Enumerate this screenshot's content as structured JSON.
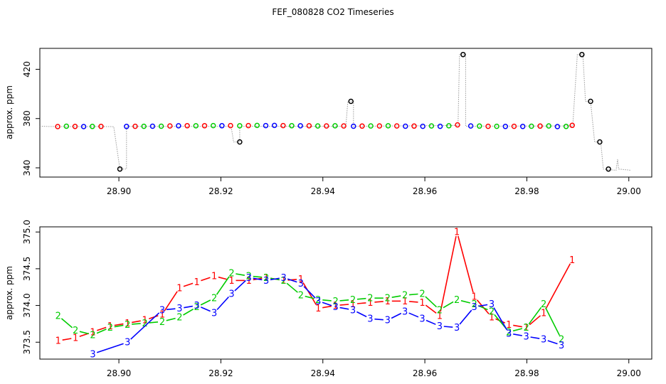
{
  "title": "FEF_080828  CO2 Timeseries",
  "chart_data": [
    {
      "type": "scatter",
      "ylabel": "approx. ppm",
      "xlim": [
        28.8845,
        29.0045
      ],
      "ylim": [
        332.5,
        437
      ],
      "x_ticks": [
        "28.90",
        "28.92",
        "28.94",
        "28.96",
        "28.98",
        "29.00"
      ],
      "y_ticks": [
        "340",
        "380",
        "420"
      ],
      "grid": false,
      "colors": {
        "trace": "#9a9a9a",
        "red": "#ff0000",
        "green": "#00cc00",
        "blue": "#0000ff",
        "black": "#000000"
      },
      "trace": [
        [
          28.8845,
          373.8
        ],
        [
          28.886,
          373.6
        ],
        [
          28.888,
          373.5
        ],
        [
          28.8985,
          373.5
        ],
        [
          28.899,
          373.3
        ],
        [
          28.9002,
          339
        ],
        [
          28.9015,
          339
        ],
        [
          28.9015,
          373.6
        ],
        [
          28.922,
          373.6
        ],
        [
          28.9225,
          361
        ],
        [
          28.9237,
          361
        ],
        [
          28.9237,
          373.7
        ],
        [
          28.9445,
          373.7
        ],
        [
          28.9449,
          394
        ],
        [
          28.946,
          394
        ],
        [
          28.946,
          373.7
        ],
        [
          28.9665,
          374.4
        ],
        [
          28.9668,
          432
        ],
        [
          28.968,
          432
        ],
        [
          28.968,
          373.8
        ],
        [
          28.989,
          374
        ],
        [
          28.9899,
          432
        ],
        [
          28.991,
          432
        ],
        [
          28.9915,
          394
        ],
        [
          28.9925,
          394
        ],
        [
          28.9933,
          361
        ],
        [
          28.9945,
          361
        ],
        [
          28.995,
          339
        ],
        [
          28.9975,
          338
        ],
        [
          28.9978,
          347
        ],
        [
          28.998,
          339
        ],
        [
          29.0005,
          338
        ]
      ],
      "points": [
        {
          "x": 28.888,
          "y": 373.5,
          "c": "red"
        },
        {
          "x": 28.8897,
          "y": 373.8,
          "c": "green"
        },
        {
          "x": 28.8914,
          "y": 373.6,
          "c": "red"
        },
        {
          "x": 28.8931,
          "y": 373.5,
          "c": "blue"
        },
        {
          "x": 28.8948,
          "y": 373.6,
          "c": "green"
        },
        {
          "x": 28.8965,
          "y": 373.6,
          "c": "red"
        },
        {
          "x": 28.9002,
          "y": 339,
          "c": "black"
        },
        {
          "x": 28.9015,
          "y": 373.6,
          "c": "blue"
        },
        {
          "x": 28.9032,
          "y": 373.7,
          "c": "red"
        },
        {
          "x": 28.9049,
          "y": 373.7,
          "c": "green"
        },
        {
          "x": 28.9066,
          "y": 373.8,
          "c": "blue"
        },
        {
          "x": 28.9083,
          "y": 373.8,
          "c": "green"
        },
        {
          "x": 28.91,
          "y": 374,
          "c": "red"
        },
        {
          "x": 28.9117,
          "y": 374.1,
          "c": "blue"
        },
        {
          "x": 28.9134,
          "y": 374.2,
          "c": "red"
        },
        {
          "x": 28.9151,
          "y": 374.1,
          "c": "green"
        },
        {
          "x": 28.9168,
          "y": 374.2,
          "c": "red"
        },
        {
          "x": 28.9185,
          "y": 374.3,
          "c": "green"
        },
        {
          "x": 28.9202,
          "y": 374.2,
          "c": "blue"
        },
        {
          "x": 28.9219,
          "y": 374.3,
          "c": "red"
        },
        {
          "x": 28.9237,
          "y": 361,
          "c": "black"
        },
        {
          "x": 28.9237,
          "y": 374.1,
          "c": "green"
        },
        {
          "x": 28.9254,
          "y": 374.3,
          "c": "red"
        },
        {
          "x": 28.9271,
          "y": 374.4,
          "c": "green"
        },
        {
          "x": 28.9288,
          "y": 374.3,
          "c": "blue"
        },
        {
          "x": 28.9305,
          "y": 374.4,
          "c": "blue"
        },
        {
          "x": 28.9322,
          "y": 374.3,
          "c": "red"
        },
        {
          "x": 28.9339,
          "y": 374.2,
          "c": "green"
        },
        {
          "x": 28.9356,
          "y": 374.1,
          "c": "blue"
        },
        {
          "x": 28.9373,
          "y": 374.1,
          "c": "red"
        },
        {
          "x": 28.939,
          "y": 374,
          "c": "green"
        },
        {
          "x": 28.9407,
          "y": 374,
          "c": "red"
        },
        {
          "x": 28.9424,
          "y": 374.1,
          "c": "green"
        },
        {
          "x": 28.9441,
          "y": 374,
          "c": "red"
        },
        {
          "x": 28.9455,
          "y": 394,
          "c": "black"
        },
        {
          "x": 28.946,
          "y": 373.8,
          "c": "blue"
        },
        {
          "x": 28.9477,
          "y": 373.9,
          "c": "red"
        },
        {
          "x": 28.9494,
          "y": 374,
          "c": "green"
        },
        {
          "x": 28.9511,
          "y": 374,
          "c": "red"
        },
        {
          "x": 28.9528,
          "y": 374.1,
          "c": "green"
        },
        {
          "x": 28.9545,
          "y": 374,
          "c": "red"
        },
        {
          "x": 28.9562,
          "y": 373.8,
          "c": "blue"
        },
        {
          "x": 28.9579,
          "y": 373.9,
          "c": "red"
        },
        {
          "x": 28.9596,
          "y": 373.7,
          "c": "blue"
        },
        {
          "x": 28.9613,
          "y": 374,
          "c": "green"
        },
        {
          "x": 28.963,
          "y": 373.7,
          "c": "blue"
        },
        {
          "x": 28.9647,
          "y": 374.1,
          "c": "green"
        },
        {
          "x": 28.9664,
          "y": 374.9,
          "c": "red"
        },
        {
          "x": 28.9675,
          "y": 432,
          "c": "black"
        },
        {
          "x": 28.969,
          "y": 374,
          "c": "blue"
        },
        {
          "x": 28.9707,
          "y": 373.9,
          "c": "green"
        },
        {
          "x": 28.9724,
          "y": 373.7,
          "c": "red"
        },
        {
          "x": 28.9741,
          "y": 373.7,
          "c": "green"
        },
        {
          "x": 28.9758,
          "y": 373.6,
          "c": "blue"
        },
        {
          "x": 28.9775,
          "y": 373.7,
          "c": "red"
        },
        {
          "x": 28.9792,
          "y": 373.6,
          "c": "blue"
        },
        {
          "x": 28.9809,
          "y": 373.8,
          "c": "green"
        },
        {
          "x": 28.9826,
          "y": 373.9,
          "c": "red"
        },
        {
          "x": 28.9843,
          "y": 374,
          "c": "green"
        },
        {
          "x": 28.986,
          "y": 373.5,
          "c": "blue"
        },
        {
          "x": 28.9877,
          "y": 373.6,
          "c": "green"
        },
        {
          "x": 28.9889,
          "y": 374.5,
          "c": "red"
        },
        {
          "x": 28.9908,
          "y": 432,
          "c": "black"
        },
        {
          "x": 28.9925,
          "y": 394,
          "c": "black"
        },
        {
          "x": 28.9943,
          "y": 361,
          "c": "black"
        },
        {
          "x": 28.996,
          "y": 339,
          "c": "black"
        }
      ]
    },
    {
      "type": "line",
      "ylabel": "approx. ppm",
      "xlim": [
        28.8845,
        29.0045
      ],
      "ylim": [
        373.27,
        375.07
      ],
      "x_ticks": [
        "28.90",
        "28.92",
        "28.94",
        "28.96",
        "28.98",
        "29.00"
      ],
      "y_ticks": [
        "373.5",
        "374.0",
        "374.5",
        "375.0"
      ],
      "grid": false,
      "series": [
        {
          "name": "1",
          "color": "#ff0000",
          "points": [
            [
              28.8881,
              373.52
            ],
            [
              28.8915,
              373.56
            ],
            [
              28.8949,
              373.64
            ],
            [
              28.8983,
              373.72
            ],
            [
              28.9017,
              373.76
            ],
            [
              28.9051,
              373.8
            ],
            [
              28.9085,
              373.88
            ],
            [
              28.9119,
              374.24
            ],
            [
              28.9153,
              374.32
            ],
            [
              28.9187,
              374.4
            ],
            [
              28.9221,
              374.34
            ],
            [
              28.9255,
              374.34
            ],
            [
              28.9289,
              374.38
            ],
            [
              28.9323,
              374.34
            ],
            [
              28.9357,
              374.36
            ],
            [
              28.9391,
              373.96
            ],
            [
              28.9425,
              374
            ],
            [
              28.9459,
              374.02
            ],
            [
              28.9493,
              374.04
            ],
            [
              28.9527,
              374.06
            ],
            [
              28.9561,
              374.06
            ],
            [
              28.9595,
              374.04
            ],
            [
              28.9629,
              373.86
            ],
            [
              28.9663,
              375
            ],
            [
              28.9697,
              374.12
            ],
            [
              28.9731,
              373.84
            ],
            [
              28.9765,
              373.74
            ],
            [
              28.9799,
              373.7
            ],
            [
              28.9833,
              373.9
            ],
            [
              28.9889,
              374.62
            ]
          ]
        },
        {
          "name": "2",
          "color": "#00cc00",
          "points": [
            [
              28.8881,
              373.86
            ],
            [
              28.8915,
              373.66
            ],
            [
              28.8949,
              373.6
            ],
            [
              28.8983,
              373.7
            ],
            [
              28.9017,
              373.74
            ],
            [
              28.9051,
              373.76
            ],
            [
              28.9085,
              373.78
            ],
            [
              28.9119,
              373.84
            ],
            [
              28.9153,
              373.98
            ],
            [
              28.9187,
              374.1
            ],
            [
              28.9221,
              374.44
            ],
            [
              28.9255,
              374.4
            ],
            [
              28.9289,
              374.38
            ],
            [
              28.9323,
              374.34
            ],
            [
              28.9357,
              374.14
            ],
            [
              28.9391,
              374.08
            ],
            [
              28.9425,
              374.06
            ],
            [
              28.9459,
              374.08
            ],
            [
              28.9493,
              374.1
            ],
            [
              28.9527,
              374.1
            ],
            [
              28.9561,
              374.14
            ],
            [
              28.9595,
              374.16
            ],
            [
              28.9629,
              373.94
            ],
            [
              28.9663,
              374.08
            ],
            [
              28.9697,
              374.02
            ],
            [
              28.9731,
              373.92
            ],
            [
              28.9765,
              373.64
            ],
            [
              28.9799,
              373.7
            ],
            [
              28.9833,
              374.02
            ],
            [
              28.9868,
              373.54
            ]
          ]
        },
        {
          "name": "3",
          "color": "#0000ff",
          "points": [
            [
              28.8949,
              373.34
            ],
            [
              28.9017,
              373.5
            ],
            [
              28.9085,
              373.94
            ],
            [
              28.9119,
              373.96
            ],
            [
              28.9153,
              374
            ],
            [
              28.9187,
              373.9
            ],
            [
              28.9221,
              374.16
            ],
            [
              28.9255,
              374.38
            ],
            [
              28.9289,
              374.34
            ],
            [
              28.9323,
              374.38
            ],
            [
              28.9357,
              374.3
            ],
            [
              28.9391,
              374.06
            ],
            [
              28.9425,
              373.98
            ],
            [
              28.9459,
              373.94
            ],
            [
              28.9493,
              373.82
            ],
            [
              28.9527,
              373.8
            ],
            [
              28.9561,
              373.92
            ],
            [
              28.9595,
              373.82
            ],
            [
              28.9629,
              373.72
            ],
            [
              28.9663,
              373.7
            ],
            [
              28.9697,
              373.98
            ],
            [
              28.9731,
              374.02
            ],
            [
              28.9765,
              373.62
            ],
            [
              28.9799,
              373.58
            ],
            [
              28.9833,
              373.54
            ],
            [
              28.9868,
              373.46
            ]
          ]
        }
      ]
    }
  ]
}
